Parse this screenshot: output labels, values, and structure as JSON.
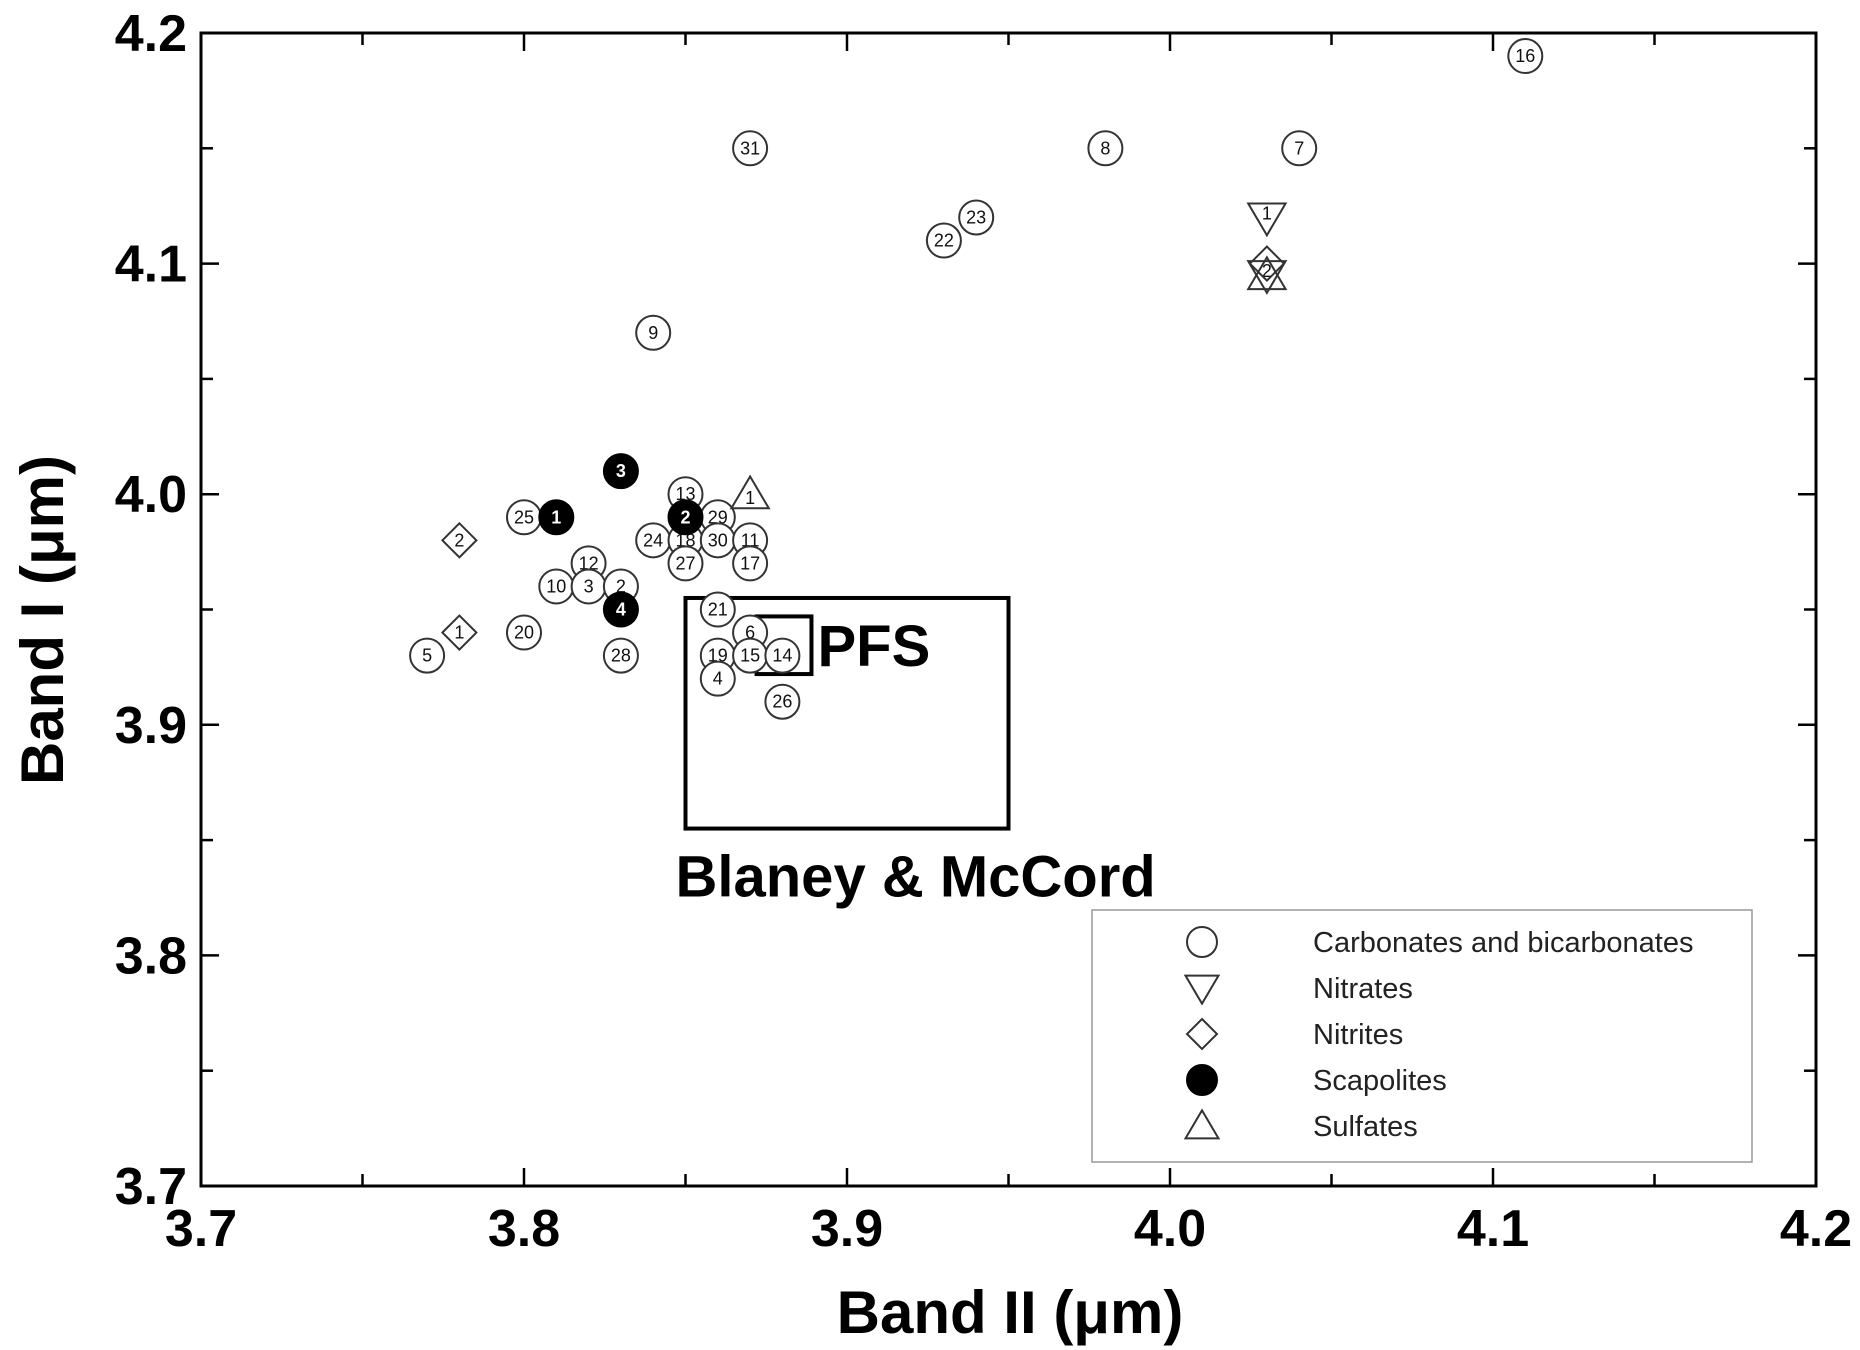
{
  "chart_data": {
    "type": "scatter",
    "xlabel": "Band II (μm)",
    "ylabel": "Band I (μm)",
    "xlim": [
      3.7,
      4.2
    ],
    "ylim": [
      3.7,
      4.2
    ],
    "x_ticks": [
      "3.7",
      "3.8",
      "3.9",
      "4.0",
      "4.1",
      "4.2"
    ],
    "y_ticks": [
      "3.7",
      "3.8",
      "3.9",
      "4.0",
      "4.1",
      "4.2"
    ],
    "grid": false,
    "legend_position": "bottom-right",
    "series": [
      {
        "name": "Carbonates and bicarbonates",
        "marker": "circle-open",
        "points": [
          {
            "label": "16",
            "x": 4.11,
            "y": 4.19
          },
          {
            "label": "31",
            "x": 3.87,
            "y": 4.15
          },
          {
            "label": "8",
            "x": 3.98,
            "y": 4.15
          },
          {
            "label": "7",
            "x": 4.04,
            "y": 4.15
          },
          {
            "label": "23",
            "x": 3.94,
            "y": 4.12
          },
          {
            "label": "22",
            "x": 3.93,
            "y": 4.11
          },
          {
            "label": "9",
            "x": 3.84,
            "y": 4.07
          },
          {
            "label": "13",
            "x": 3.85,
            "y": 4.0
          },
          {
            "label": "25",
            "x": 3.8,
            "y": 3.99
          },
          {
            "label": "29",
            "x": 3.86,
            "y": 3.99
          },
          {
            "label": "24",
            "x": 3.84,
            "y": 3.98
          },
          {
            "label": "18",
            "x": 3.85,
            "y": 3.98
          },
          {
            "label": "30",
            "x": 3.86,
            "y": 3.98
          },
          {
            "label": "11",
            "x": 3.87,
            "y": 3.98
          },
          {
            "label": "12",
            "x": 3.82,
            "y": 3.97
          },
          {
            "label": "27",
            "x": 3.85,
            "y": 3.97
          },
          {
            "label": "17",
            "x": 3.87,
            "y": 3.97
          },
          {
            "label": "10",
            "x": 3.81,
            "y": 3.96
          },
          {
            "label": "3",
            "x": 3.82,
            "y": 3.96
          },
          {
            "label": "2",
            "x": 3.83,
            "y": 3.96
          },
          {
            "label": "21",
            "x": 3.86,
            "y": 3.95
          },
          {
            "label": "6",
            "x": 3.87,
            "y": 3.94
          },
          {
            "label": "20",
            "x": 3.8,
            "y": 3.94
          },
          {
            "label": "5",
            "x": 3.77,
            "y": 3.93
          },
          {
            "label": "28",
            "x": 3.83,
            "y": 3.93
          },
          {
            "label": "19",
            "x": 3.86,
            "y": 3.93
          },
          {
            "label": "15",
            "x": 3.87,
            "y": 3.93
          },
          {
            "label": "14",
            "x": 3.88,
            "y": 3.93
          },
          {
            "label": "4",
            "x": 3.86,
            "y": 3.92
          },
          {
            "label": "26",
            "x": 3.88,
            "y": 3.91
          }
        ]
      },
      {
        "name": "Nitrates",
        "marker": "triangle-down-open",
        "points": [
          {
            "label": "1",
            "x": 4.03,
            "y": 4.12
          },
          {
            "label": "2",
            "x": 4.03,
            "y": 4.095
          }
        ]
      },
      {
        "name": "Nitrites",
        "marker": "diamond-open",
        "points": [
          {
            "label": "2",
            "x": 3.78,
            "y": 3.98
          },
          {
            "label": "1",
            "x": 3.78,
            "y": 3.94
          },
          {
            "label": "",
            "x": 4.03,
            "y": 4.1
          }
        ]
      },
      {
        "name": "Scapolites",
        "marker": "circle-filled",
        "points": [
          {
            "label": "3",
            "x": 3.83,
            "y": 4.01
          },
          {
            "label": "1",
            "x": 3.81,
            "y": 3.99
          },
          {
            "label": "2",
            "x": 3.85,
            "y": 3.99
          },
          {
            "label": "4",
            "x": 3.83,
            "y": 3.95
          }
        ]
      },
      {
        "name": "Sulfates",
        "marker": "triangle-up-open",
        "points": [
          {
            "label": "1",
            "x": 3.87,
            "y": 4.0
          },
          {
            "label": "",
            "x": 4.03,
            "y": 4.095
          }
        ]
      }
    ],
    "regions": [
      {
        "label": "Blaney & McCord",
        "x": [
          3.85,
          3.95
        ],
        "y": [
          3.855,
          3.955
        ]
      },
      {
        "label": "PFS",
        "x": [
          3.872,
          3.889
        ],
        "y": [
          3.922,
          3.947
        ]
      }
    ]
  }
}
